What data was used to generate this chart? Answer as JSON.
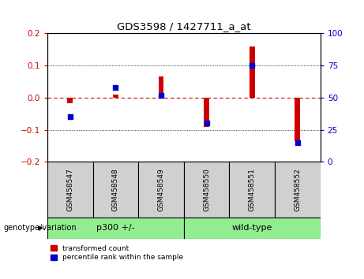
{
  "title": "GDS3598 / 1427711_a_at",
  "samples": [
    "GSM458547",
    "GSM458548",
    "GSM458549",
    "GSM458550",
    "GSM458551",
    "GSM458552"
  ],
  "red_values": [
    -0.018,
    0.01,
    0.065,
    -0.09,
    0.16,
    -0.135
  ],
  "blue_values": [
    35,
    58,
    52,
    30,
    75,
    15
  ],
  "ylim_left": [
    -0.2,
    0.2
  ],
  "ylim_right": [
    0,
    100
  ],
  "yticks_left": [
    -0.2,
    -0.1,
    0.0,
    0.1,
    0.2
  ],
  "yticks_right": [
    0,
    25,
    50,
    75,
    100
  ],
  "red_color": "#CC0000",
  "blue_color": "#0000CC",
  "bar_width": 0.12,
  "legend_red": "transformed count",
  "legend_blue": "percentile rank within the sample",
  "group_label": "genotype/variation",
  "groups": [
    {
      "label": "p300 +/-",
      "start": 0,
      "end": 2
    },
    {
      "label": "wild-type",
      "start": 3,
      "end": 5
    }
  ],
  "group_color": "#90EE90",
  "cell_color": "#d0d0d0"
}
